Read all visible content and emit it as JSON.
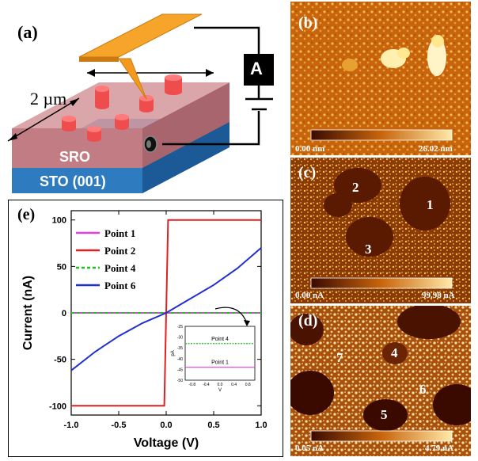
{
  "figure": {
    "panel_labels": {
      "a": "(a)",
      "b": "(b)",
      "c": "(c)",
      "d": "(d)",
      "e": "(e)"
    },
    "schematic": {
      "length_label": "2 µm",
      "layer_top": "SRO",
      "layer_bottom": "STO (001)",
      "ammeter": "A"
    },
    "afm_b": {
      "cbar_min": "0.00 nm",
      "cbar_max": "26.02 nm"
    },
    "afm_c": {
      "cbar_min": "0.00 nA",
      "cbar_max": "99.98 nA",
      "points": [
        "1",
        "2",
        "3"
      ]
    },
    "afm_d": {
      "cbar_min": "0.05 nA",
      "cbar_max": "4.79 nA",
      "points": [
        "4",
        "5",
        "6",
        "7"
      ]
    },
    "colors": {
      "sro": "#c98b8f",
      "sto": "#2e7bbf",
      "tip": "#f39a1e",
      "pillar": "#ef4d4d",
      "afm_dark": "#3a0a00",
      "afm_light": "#ffe9a8"
    }
  },
  "chart_data": {
    "type": "line",
    "xlabel": "Voltage (V)",
    "ylabel": "Current (nA)",
    "xlim": [
      -1.0,
      1.0
    ],
    "ylim": [
      -110,
      110
    ],
    "xticks": [
      "-1.0",
      "-0.5",
      "0.0",
      "0.5",
      "1.0"
    ],
    "yticks": [
      "100",
      "50",
      "0",
      "-50",
      "-100"
    ],
    "xtick_values": [
      -1.0,
      -0.5,
      0.0,
      0.5,
      1.0
    ],
    "ytick_values": [
      100,
      50,
      0,
      -50,
      -100
    ],
    "series": [
      {
        "name": "Point 1",
        "color": "#e040e0",
        "dash": "solid",
        "x": [
          -1.0,
          1.0
        ],
        "y": [
          0,
          0
        ]
      },
      {
        "name": "Point 2",
        "color": "#e02020",
        "dash": "solid",
        "x": [
          -1.0,
          -0.02,
          0.0,
          0.02,
          1.0
        ],
        "y": [
          -100,
          -100,
          0,
          100,
          100
        ]
      },
      {
        "name": "Point 4",
        "color": "#20c020",
        "dash": "dashed",
        "x": [
          -1.0,
          1.0
        ],
        "y": [
          0,
          0
        ]
      },
      {
        "name": "Point 6",
        "color": "#2030d0",
        "dash": "solid",
        "x": [
          -1.0,
          -0.75,
          -0.5,
          -0.25,
          0.0,
          0.25,
          0.5,
          0.75,
          1.0
        ],
        "y": [
          -62,
          -42,
          -25,
          -11,
          0,
          15,
          30,
          48,
          70
        ]
      }
    ],
    "inset": {
      "xlabel": "V",
      "ylabel": "pA",
      "xlim": [
        -1.0,
        1.0
      ],
      "ylim": [
        -50,
        -25
      ],
      "xticks": [
        "-0.8",
        "-0.4",
        "0.0",
        "0.4",
        "0.8"
      ],
      "xtick_values": [
        -0.8,
        -0.4,
        0.0,
        0.4,
        0.8
      ],
      "yticks": [
        "-25",
        "-30",
        "-35",
        "-40",
        "-45",
        "-50"
      ],
      "ytick_values": [
        -25,
        -30,
        -35,
        -40,
        -45,
        -50
      ],
      "series": [
        {
          "name": "Point 4",
          "color": "#20c020",
          "dash": "dashed",
          "x": [
            -1.0,
            1.0
          ],
          "y": [
            -33,
            -33
          ]
        },
        {
          "name": "Point 1",
          "color": "#e040e0",
          "dash": "solid",
          "x": [
            -1.0,
            1.0
          ],
          "y": [
            -44,
            -44
          ]
        }
      ]
    }
  }
}
